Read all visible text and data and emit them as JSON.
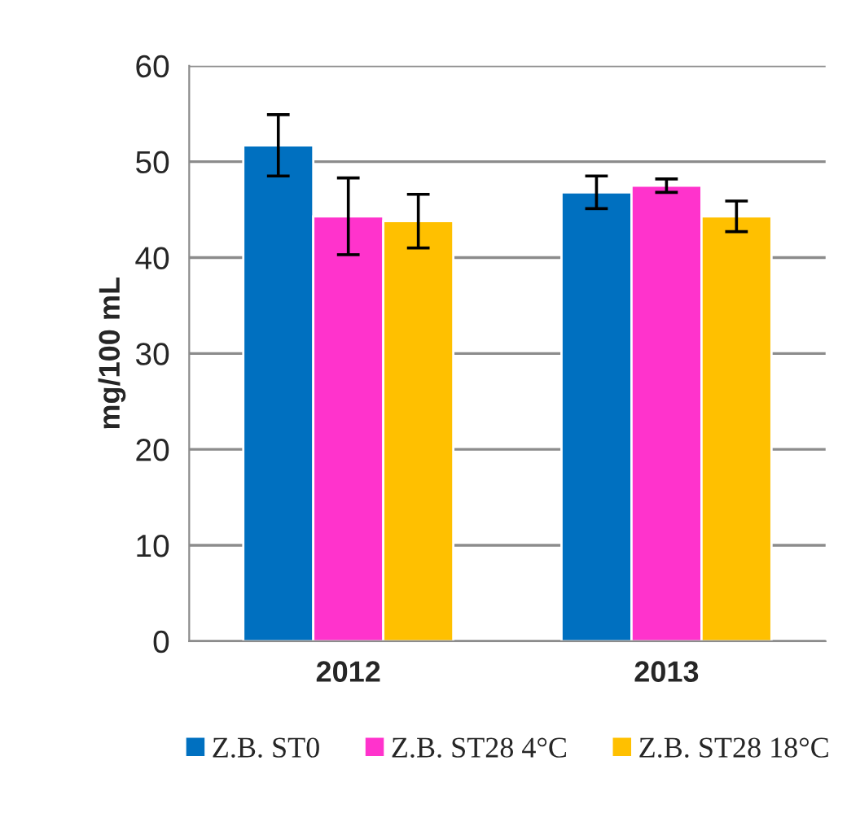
{
  "chart_data": {
    "type": "bar",
    "ylabel": "mg/100 mL",
    "categories": [
      "2012",
      "2013"
    ],
    "series": [
      {
        "name": "Z.B. ST0",
        "color": "#0070c0",
        "values": [
          51.7,
          46.8
        ],
        "errors": [
          3.2,
          1.7
        ]
      },
      {
        "name": "Z.B. ST28 4°C",
        "color": "#ff33cc",
        "values": [
          44.3,
          47.5
        ],
        "errors": [
          4.0,
          0.7
        ]
      },
      {
        "name": "Z.B. ST28 18°C",
        "color": "#ffc000",
        "values": [
          43.8,
          44.3
        ],
        "errors": [
          2.8,
          1.6
        ]
      }
    ],
    "ylim": [
      0,
      60
    ],
    "yticks": [
      0,
      10,
      20,
      30,
      40,
      50,
      60
    ],
    "grid": "y",
    "legend": "bottom"
  }
}
